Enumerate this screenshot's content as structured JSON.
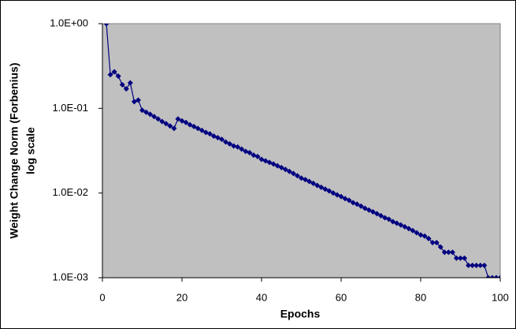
{
  "chart_data": {
    "type": "line",
    "xlabel": "Epochs",
    "ylabel": [
      "Weight Change Norm (Forbenius)",
      "log scale"
    ],
    "x": [
      1,
      2,
      3,
      4,
      5,
      6,
      7,
      8,
      9,
      10,
      11,
      12,
      13,
      14,
      15,
      16,
      17,
      18,
      19,
      20,
      21,
      22,
      23,
      24,
      25,
      26,
      27,
      28,
      29,
      30,
      31,
      32,
      33,
      34,
      35,
      36,
      37,
      38,
      39,
      40,
      41,
      42,
      43,
      44,
      45,
      46,
      47,
      48,
      49,
      50,
      51,
      52,
      53,
      54,
      55,
      56,
      57,
      58,
      59,
      60,
      61,
      62,
      63,
      64,
      65,
      66,
      67,
      68,
      69,
      70,
      71,
      72,
      73,
      74,
      75,
      76,
      77,
      78,
      79,
      80,
      81,
      82,
      83,
      84,
      85,
      86,
      87,
      88,
      89,
      90,
      91,
      92,
      93,
      94,
      95,
      96,
      97,
      98,
      99,
      100
    ],
    "series": [
      {
        "name": "Weight Change Norm",
        "color": "#000080",
        "values": [
          1,
          0.25,
          0.27,
          0.24,
          0.19,
          0.17,
          0.2,
          0.12,
          0.125,
          0.095,
          0.09,
          0.085,
          0.08,
          0.075,
          0.07,
          0.066,
          0.062,
          0.058,
          0.075,
          0.071,
          0.068,
          0.064,
          0.061,
          0.058,
          0.055,
          0.052,
          0.05,
          0.047,
          0.045,
          0.043,
          0.04,
          0.038,
          0.036,
          0.035,
          0.033,
          0.031,
          0.03,
          0.028,
          0.027,
          0.025,
          0.024,
          0.023,
          0.022,
          0.021,
          0.02,
          0.019,
          0.018,
          0.017,
          0.016,
          0.015,
          0.0144,
          0.0137,
          0.013,
          0.0123,
          0.0117,
          0.0111,
          0.0106,
          0.01,
          0.0095,
          0.0091,
          0.0086,
          0.0082,
          0.0077,
          0.0074,
          0.007,
          0.0066,
          0.0063,
          0.006,
          0.0057,
          0.0054,
          0.0051,
          0.0049,
          0.0046,
          0.0044,
          0.0042,
          0.004,
          0.0038,
          0.0036,
          0.0034,
          0.0032,
          0.0031,
          0.0029,
          0.0026,
          0.0026,
          0.0023,
          0.002,
          0.002,
          0.002,
          0.0017,
          0.0017,
          0.0017,
          0.0014,
          0.0014,
          0.0014,
          0.0014,
          0.0014,
          0.001,
          0.001,
          0.001,
          0.001
        ]
      }
    ],
    "xlim": [
      0,
      100
    ],
    "xticks": [
      0,
      20,
      40,
      60,
      80,
      100
    ],
    "ylim": [
      0.001,
      1
    ],
    "ylog": true,
    "yticks": [
      {
        "value": 0.001,
        "label": "1.0E-03"
      },
      {
        "value": 0.01,
        "label": "1.0E-02"
      },
      {
        "value": 0.1,
        "label": "1.0E-01"
      },
      {
        "value": 1,
        "label": "1.0E+00"
      }
    ],
    "plot_background": "#c0c0c0",
    "grid": false
  }
}
